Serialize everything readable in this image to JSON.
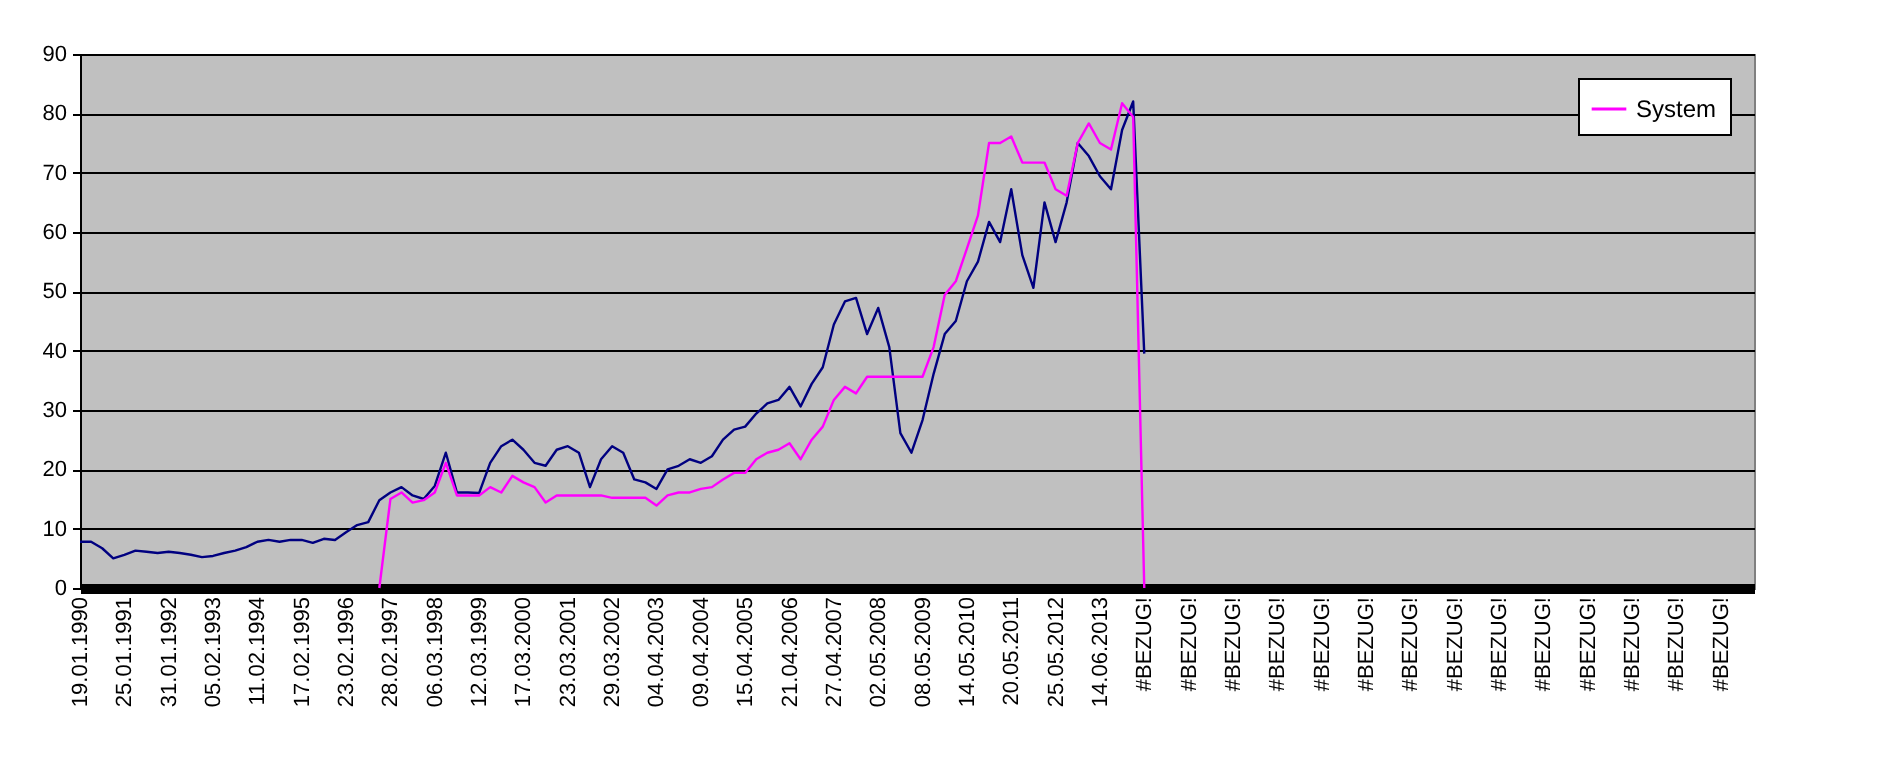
{
  "chart_data": {
    "type": "line",
    "categories": [
      "19.01.1990",
      null,
      null,
      null,
      "25.01.1991",
      null,
      null,
      null,
      "31.01.1992",
      null,
      null,
      null,
      "05.02.1993",
      null,
      null,
      null,
      "11.02.1994",
      null,
      null,
      null,
      "17.02.1995",
      null,
      null,
      null,
      "23.02.1996",
      null,
      null,
      null,
      "28.02.1997",
      null,
      null,
      null,
      "06.03.1998",
      null,
      null,
      null,
      "12.03.1999",
      null,
      null,
      null,
      "17.03.2000",
      null,
      null,
      null,
      "23.03.2001",
      null,
      null,
      null,
      "29.03.2002",
      null,
      null,
      null,
      "04.04.2003",
      null,
      null,
      null,
      "09.04.2004",
      null,
      null,
      null,
      "15.04.2005",
      null,
      null,
      null,
      "21.04.2006",
      null,
      null,
      null,
      "27.04.2007",
      null,
      null,
      null,
      "02.05.2008",
      null,
      null,
      null,
      "08.05.2009",
      null,
      null,
      null,
      "14.05.2010",
      null,
      null,
      null,
      "20.05.2011",
      null,
      null,
      null,
      "25.05.2012",
      null,
      null,
      null,
      "14.06.2013",
      null,
      null,
      null,
      "#BEZUG!",
      null,
      null,
      null,
      "#BEZUG!",
      null,
      null,
      null,
      "#BEZUG!",
      null,
      null,
      null,
      "#BEZUG!",
      null,
      null,
      null,
      "#BEZUG!",
      null,
      null,
      null,
      "#BEZUG!",
      null,
      null,
      null,
      "#BEZUG!",
      null,
      null,
      null,
      "#BEZUG!",
      null,
      null,
      null,
      "#BEZUG!",
      null,
      null,
      null,
      "#BEZUG!",
      null,
      null,
      null,
      "#BEZUG!",
      null,
      null,
      null,
      "#BEZUG!",
      null,
      null,
      null,
      "#BEZUG!",
      null,
      null,
      null,
      "#BEZUG!",
      null,
      null,
      null
    ],
    "series": [
      {
        "color": "#000080",
        "values": [
          7.8,
          7.8,
          6.7,
          5,
          5.6,
          6.3,
          6.1,
          5.9,
          6.1,
          5.9,
          5.6,
          5.2,
          5.4,
          5.9,
          6.3,
          6.9,
          7.8,
          8.1,
          7.8,
          8.1,
          8.1,
          7.6,
          8.3,
          8.1,
          9.4,
          10.6,
          11.1,
          14.8,
          16.1,
          17,
          15.6,
          15,
          17.2,
          22.8,
          16.1,
          16.1,
          16,
          21.1,
          23.9,
          25,
          23.3,
          21.1,
          20.6,
          23.3,
          23.9,
          22.8,
          17,
          21.7,
          23.9,
          22.8,
          18.3,
          17.8,
          16.7,
          20,
          20.6,
          21.7,
          21.1,
          22.2,
          25,
          26.7,
          27.2,
          29.4,
          31.1,
          31.7,
          33.9,
          30.6,
          34.4,
          37.2,
          44.4,
          48.3,
          48.9,
          42.8,
          47.2,
          40.6,
          26.1,
          22.8,
          28.3,
          36.1,
          42.8,
          45,
          51.7,
          55,
          61.7,
          58.3,
          67.2,
          56.1,
          50.6,
          65,
          58.3,
          65,
          75,
          72.8,
          69.4,
          67.2,
          77.2,
          82,
          39.5,
          null,
          null,
          null,
          null,
          null,
          null,
          null,
          null,
          null,
          null,
          null,
          null,
          null,
          null,
          null,
          null,
          null,
          null,
          null,
          null,
          null,
          null,
          null,
          null,
          null,
          null,
          null,
          null,
          null,
          null,
          null,
          null,
          null,
          null,
          null,
          null,
          null,
          null,
          null,
          null,
          null,
          null,
          null,
          null,
          null,
          null,
          null,
          null,
          null,
          null,
          null,
          null,
          null,
          null,
          null
        ]
      },
      {
        "name": "System",
        "color": "#ff00ff",
        "values": [
          null,
          null,
          null,
          null,
          null,
          null,
          null,
          null,
          null,
          null,
          null,
          null,
          null,
          null,
          null,
          null,
          null,
          null,
          null,
          null,
          null,
          null,
          null,
          null,
          null,
          null,
          null,
          0,
          15,
          16.1,
          14.4,
          14.8,
          16.1,
          21.1,
          15.6,
          15.6,
          15.6,
          17,
          16.1,
          18.9,
          17.8,
          17,
          14.4,
          15.6,
          15.6,
          15.6,
          15.6,
          15.6,
          15.2,
          15.2,
          15.2,
          15.2,
          13.9,
          15.6,
          16.1,
          16.1,
          16.7,
          17,
          18.3,
          19.4,
          19.4,
          21.7,
          22.8,
          23.3,
          24.4,
          21.7,
          25,
          27.2,
          31.7,
          33.9,
          32.8,
          35.6,
          35.6,
          35.6,
          35.6,
          35.6,
          35.6,
          40.6,
          49.4,
          51.7,
          57.2,
          62.8,
          75,
          75,
          76.1,
          71.7,
          71.7,
          71.7,
          67.2,
          66.1,
          75,
          78.3,
          75,
          73.9,
          81.7,
          79.4,
          0,
          null,
          null,
          null,
          null,
          null,
          null,
          null,
          null,
          null,
          null,
          null,
          null,
          null,
          null,
          null,
          null,
          null,
          null,
          null,
          null,
          null,
          null,
          null,
          null,
          null,
          null,
          null,
          null,
          null,
          null,
          null,
          null,
          null,
          null,
          null,
          null,
          null,
          null,
          null,
          null,
          null,
          null,
          null,
          null,
          null,
          null,
          null,
          null,
          null,
          null,
          null,
          null,
          null,
          null,
          null
        ]
      }
    ],
    "ylim": [
      0,
      90
    ],
    "yticks": [
      0,
      10,
      20,
      30,
      40,
      50,
      60,
      70,
      80,
      90
    ],
    "grid": "y",
    "legend": "top right"
  }
}
